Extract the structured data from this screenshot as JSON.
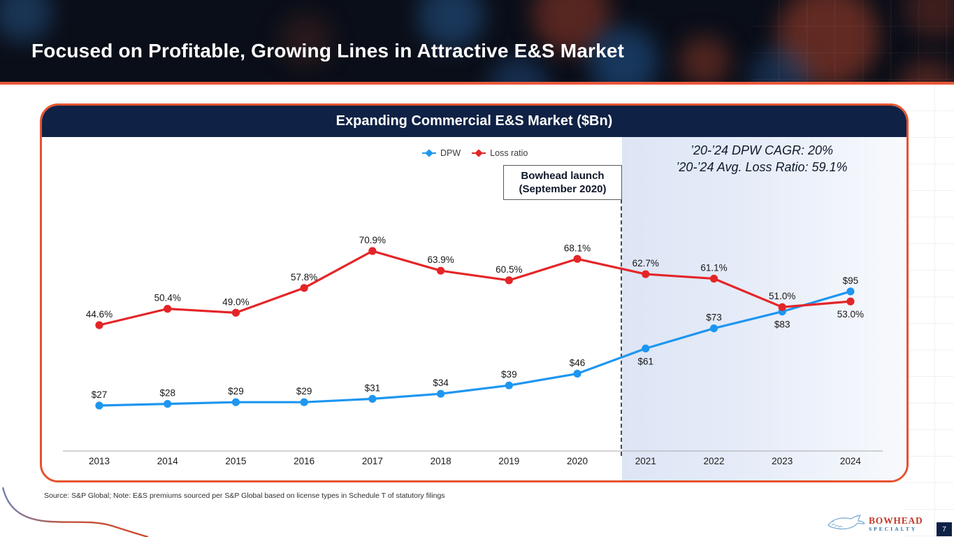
{
  "slide": {
    "title": "Focused on Profitable, Growing Lines in Attractive E&S Market",
    "page_number": "7",
    "source_note": "Source: S&P Global; Note: E&S premiums sourced per S&P Global based on license types in Schedule T of statutory filings"
  },
  "logo": {
    "primary": "BOWHEAD",
    "secondary": "SPECIALTY"
  },
  "card": {
    "title": "Expanding Commercial E&S Market ($Bn)",
    "legend": [
      {
        "label": "DPW",
        "color": "#1e96f0"
      },
      {
        "label": "Loss ratio",
        "color": "#e42528"
      }
    ],
    "launch_box": {
      "line1": "Bowhead launch",
      "line2": "(September 2020)"
    },
    "stats": {
      "line1": "’20-’24 DPW CAGR: 20%",
      "line2": "’20-’24 Avg. Loss Ratio: 59.1%"
    }
  },
  "colors": {
    "accent_orange": "#e6532f",
    "navy": "#0f2145",
    "dpw_blue": "#1e96f0",
    "loss_red": "#e42528",
    "highlight_from": "#dde5f5",
    "highlight_to": "#f8fafd"
  },
  "chart_data": {
    "type": "line",
    "title": "Expanding Commercial E&S Market ($Bn)",
    "categories": [
      "2013",
      "2014",
      "2015",
      "2016",
      "2017",
      "2018",
      "2019",
      "2020",
      "2021",
      "2022",
      "2023",
      "2024"
    ],
    "series": [
      {
        "name": "DPW",
        "unit": "$Bn",
        "color": "#1e96f0",
        "values": [
          27,
          28,
          29,
          29,
          31,
          34,
          39,
          46,
          61,
          73,
          83,
          95
        ],
        "labels": [
          "$27",
          "$28",
          "$29",
          "$29",
          "$31",
          "$34",
          "$39",
          "$46",
          "$61",
          "$73",
          "$83",
          "$95"
        ],
        "label_pos": [
          "above",
          "above",
          "above",
          "above",
          "above",
          "above",
          "above",
          "above",
          "below",
          "above",
          "below",
          "above"
        ]
      },
      {
        "name": "Loss ratio",
        "unit": "%",
        "color": "#e42528",
        "values": [
          44.6,
          50.4,
          49.0,
          57.8,
          70.9,
          63.9,
          60.5,
          68.1,
          62.7,
          61.1,
          51.0,
          53.0
        ],
        "labels": [
          "44.6%",
          "50.4%",
          "49.0%",
          "57.8%",
          "70.9%",
          "63.9%",
          "60.5%",
          "68.1%",
          "62.7%",
          "61.1%",
          "51.0%",
          "53.0%"
        ],
        "label_pos": [
          "above",
          "above",
          "above",
          "above",
          "above",
          "above",
          "above",
          "above",
          "above",
          "above",
          "above",
          "below"
        ]
      }
    ],
    "annotations": {
      "launch_label": [
        "Bowhead launch",
        "(September 2020)"
      ],
      "launch_vline_between": [
        "2020",
        "2021"
      ],
      "highlighted_years": [
        "2021",
        "2022",
        "2023",
        "2024"
      ],
      "stats": [
        "’20-’24 DPW CAGR: 20%",
        "’20-’24 Avg. Loss Ratio: 59.1%"
      ]
    },
    "legend_position": "top-center",
    "grid": false,
    "x_axis": {
      "labels_visible": true
    },
    "y_axis": {
      "labels_visible": false
    }
  }
}
